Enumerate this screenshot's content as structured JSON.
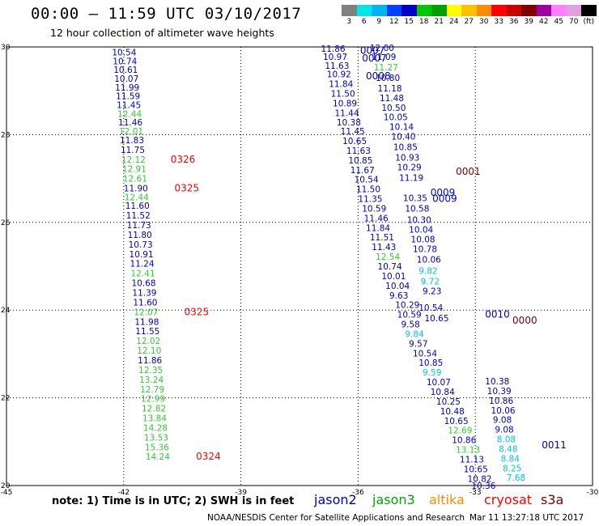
{
  "header": {
    "title": "00:00 – 11:59 UTC 03/10/2017",
    "subtitle": "12 hour collection of altimeter wave heights"
  },
  "colorbar": {
    "colors": [
      "#808080",
      "#00e5e5",
      "#00b4f0",
      "#0040ff",
      "#0000c8",
      "#00c800",
      "#00a000",
      "#ffff00",
      "#ffc000",
      "#ff8c00",
      "#ff0000",
      "#c80000",
      "#800000",
      "#a000a0",
      "#ff80ff",
      "#e0a0e0",
      "#000000"
    ],
    "labels": [
      "3",
      "6",
      "9",
      "12",
      "15",
      "18",
      "21",
      "24",
      "27",
      "30",
      "33",
      "36",
      "39",
      "42",
      "45",
      "70",
      "(ft)"
    ]
  },
  "axes": {
    "x_ticks": [
      "-45",
      "-42",
      "-39",
      "-36",
      "-33",
      "-30"
    ],
    "y_ticks": [
      "30",
      "28",
      "26",
      "24",
      "22",
      "20"
    ]
  },
  "map_extent": {
    "lon_min": -45,
    "lon_max": -30,
    "lat_min": 20,
    "lat_max": 30
  },
  "series_colors": {
    "blue": "#0000cc",
    "green": "#33cc33",
    "cyan": "#00c8e0",
    "red": "#ff0000",
    "maroon": "#800000"
  },
  "track_left": {
    "points": [
      {
        "lat": 29.88,
        "lon": -42.3,
        "v": "10.54",
        "c": "blue"
      },
      {
        "lat": 29.68,
        "lon": -42.28,
        "v": "10.74",
        "c": "blue"
      },
      {
        "lat": 29.48,
        "lon": -42.26,
        "v": "10.61",
        "c": "blue"
      },
      {
        "lat": 29.28,
        "lon": -42.24,
        "v": "10.07",
        "c": "blue"
      },
      {
        "lat": 29.08,
        "lon": -42.22,
        "v": "11.99",
        "c": "blue"
      },
      {
        "lat": 28.88,
        "lon": -42.2,
        "v": "11.59",
        "c": "blue"
      },
      {
        "lat": 28.68,
        "lon": -42.18,
        "v": "11.45",
        "c": "blue"
      },
      {
        "lat": 28.48,
        "lon": -42.16,
        "v": "12.44",
        "c": "green"
      },
      {
        "lat": 28.28,
        "lon": -42.14,
        "v": "11.46",
        "c": "blue"
      },
      {
        "lat": 28.08,
        "lon": -42.12,
        "v": "12.01",
        "c": "green"
      },
      {
        "lat": 27.88,
        "lon": -42.1,
        "v": "11.83",
        "c": "blue"
      },
      {
        "lat": 27.66,
        "lon": -42.08,
        "v": "11.75",
        "c": "blue"
      },
      {
        "lat": 27.44,
        "lon": -42.06,
        "v": "12.12",
        "c": "green"
      },
      {
        "lat": 27.22,
        "lon": -42.04,
        "v": "12.91",
        "c": "green"
      },
      {
        "lat": 27.0,
        "lon": -42.02,
        "v": "12.61",
        "c": "green"
      },
      {
        "lat": 26.78,
        "lon": -42.0,
        "v": "11.90",
        "c": "blue"
      },
      {
        "lat": 26.58,
        "lon": -41.98,
        "v": "12.44",
        "c": "green"
      },
      {
        "lat": 26.38,
        "lon": -41.96,
        "v": "11.60",
        "c": "blue"
      },
      {
        "lat": 26.16,
        "lon": -41.94,
        "v": "11.52",
        "c": "blue"
      },
      {
        "lat": 25.94,
        "lon": -41.92,
        "v": "11.73",
        "c": "blue"
      },
      {
        "lat": 25.72,
        "lon": -41.9,
        "v": "11.80",
        "c": "blue"
      },
      {
        "lat": 25.5,
        "lon": -41.88,
        "v": "10.73",
        "c": "blue"
      },
      {
        "lat": 25.28,
        "lon": -41.86,
        "v": "10.91",
        "c": "blue"
      },
      {
        "lat": 25.06,
        "lon": -41.84,
        "v": "11.24",
        "c": "blue"
      },
      {
        "lat": 24.84,
        "lon": -41.82,
        "v": "12.41",
        "c": "green"
      },
      {
        "lat": 24.62,
        "lon": -41.8,
        "v": "10.68",
        "c": "blue"
      },
      {
        "lat": 24.4,
        "lon": -41.78,
        "v": "11.39",
        "c": "blue"
      },
      {
        "lat": 24.18,
        "lon": -41.76,
        "v": "11.60",
        "c": "blue"
      },
      {
        "lat": 23.96,
        "lon": -41.74,
        "v": "12.07",
        "c": "green"
      },
      {
        "lat": 23.74,
        "lon": -41.72,
        "v": "11.98",
        "c": "blue"
      },
      {
        "lat": 23.52,
        "lon": -41.7,
        "v": "11.55",
        "c": "blue"
      },
      {
        "lat": 23.3,
        "lon": -41.68,
        "v": "12.02",
        "c": "green"
      },
      {
        "lat": 23.08,
        "lon": -41.66,
        "v": "12.10",
        "c": "green"
      },
      {
        "lat": 22.86,
        "lon": -41.64,
        "v": "11.86",
        "c": "blue"
      },
      {
        "lat": 22.64,
        "lon": -41.62,
        "v": "12.35",
        "c": "green"
      },
      {
        "lat": 22.42,
        "lon": -41.6,
        "v": "13.24",
        "c": "green"
      },
      {
        "lat": 22.2,
        "lon": -41.58,
        "v": "12.79",
        "c": "green"
      },
      {
        "lat": 21.98,
        "lon": -41.56,
        "v": "12.99",
        "c": "green"
      },
      {
        "lat": 21.76,
        "lon": -41.54,
        "v": "12.82",
        "c": "green"
      },
      {
        "lat": 21.54,
        "lon": -41.52,
        "v": "13.84",
        "c": "green"
      },
      {
        "lat": 21.32,
        "lon": -41.5,
        "v": "14.28",
        "c": "green"
      },
      {
        "lat": 21.1,
        "lon": -41.48,
        "v": "13.53",
        "c": "green"
      },
      {
        "lat": 20.88,
        "lon": -41.46,
        "v": "15.36",
        "c": "green"
      },
      {
        "lat": 20.66,
        "lon": -41.44,
        "v": "14.24",
        "c": "green"
      }
    ],
    "times": [
      {
        "lat": 27.44,
        "lon": -40.8,
        "t": "0326"
      },
      {
        "lat": 26.78,
        "lon": -40.7,
        "t": "0325"
      },
      {
        "lat": 23.96,
        "lon": -40.45,
        "t": "0325"
      },
      {
        "lat": 20.66,
        "lon": -40.15,
        "t": "0324"
      }
    ]
  },
  "track_right_a": [
    {
      "lat": 29.98,
      "lon": -35.7,
      "v": "12.00",
      "c": "blue"
    },
    {
      "lat": 29.78,
      "lon": -35.65,
      "v": "11.09",
      "c": "blue"
    },
    {
      "lat": 29.54,
      "lon": -35.6,
      "v": "11.27",
      "c": "green"
    },
    {
      "lat": 29.3,
      "lon": -35.55,
      "v": "10.80",
      "c": "blue"
    },
    {
      "lat": 29.06,
      "lon": -35.5,
      "v": "11.18",
      "c": "blue"
    },
    {
      "lat": 28.84,
      "lon": -35.45,
      "v": "11.48",
      "c": "blue"
    },
    {
      "lat": 28.62,
      "lon": -35.4,
      "v": "10.50",
      "c": "blue"
    },
    {
      "lat": 28.4,
      "lon": -35.35,
      "v": "10.05",
      "c": "blue"
    },
    {
      "lat": 28.18,
      "lon": -35.2,
      "v": "10.14",
      "c": "blue"
    },
    {
      "lat": 27.96,
      "lon": -35.15,
      "v": "10.40",
      "c": "blue"
    },
    {
      "lat": 27.72,
      "lon": -35.1,
      "v": "10.85",
      "c": "blue"
    },
    {
      "lat": 27.48,
      "lon": -35.05,
      "v": "10.93",
      "c": "blue"
    },
    {
      "lat": 27.26,
      "lon": -35.0,
      "v": "10.29",
      "c": "blue"
    },
    {
      "lat": 27.02,
      "lon": -34.95,
      "v": "11.19",
      "c": "blue"
    },
    {
      "lat": 26.56,
      "lon": -34.85,
      "v": "10.35",
      "c": "blue"
    },
    {
      "lat": 26.32,
      "lon": -34.8,
      "v": "10.58",
      "c": "blue"
    },
    {
      "lat": 26.06,
      "lon": -34.75,
      "v": "10.30",
      "c": "blue"
    },
    {
      "lat": 25.84,
      "lon": -34.7,
      "v": "10.04",
      "c": "blue"
    },
    {
      "lat": 25.62,
      "lon": -34.65,
      "v": "10.08",
      "c": "blue"
    },
    {
      "lat": 25.4,
      "lon": -34.6,
      "v": "10.78",
      "c": "blue"
    },
    {
      "lat": 25.16,
      "lon": -34.5,
      "v": "10.06",
      "c": "blue"
    },
    {
      "lat": 24.9,
      "lon": -34.45,
      "v": "9.82",
      "c": "cyan"
    },
    {
      "lat": 24.66,
      "lon": -34.4,
      "v": "9.72",
      "c": "cyan"
    },
    {
      "lat": 24.44,
      "lon": -34.35,
      "v": "9.23",
      "c": "blue"
    },
    {
      "lat": 24.06,
      "lon": -34.45,
      "v": "10.54",
      "c": "blue"
    },
    {
      "lat": 23.82,
      "lon": -34.3,
      "v": "10.65",
      "c": "blue"
    }
  ],
  "track_right_labels": [
    {
      "lat": 29.96,
      "lon": -36.95,
      "v": "11.86",
      "c": "blue"
    },
    {
      "lat": 29.78,
      "lon": -36.9,
      "v": "10.97",
      "c": "blue"
    },
    {
      "lat": 29.58,
      "lon": -36.85,
      "v": "11.63",
      "c": "blue"
    },
    {
      "lat": 29.38,
      "lon": -36.8,
      "v": "10.92",
      "c": "blue"
    },
    {
      "lat": 29.16,
      "lon": -36.75,
      "v": "11.84",
      "c": "blue"
    },
    {
      "lat": 28.94,
      "lon": -36.7,
      "v": "11.50",
      "c": "blue"
    },
    {
      "lat": 28.72,
      "lon": -36.65,
      "v": "10.89",
      "c": "blue"
    },
    {
      "lat": 28.5,
      "lon": -36.6,
      "v": "11.44",
      "c": "blue"
    },
    {
      "lat": 28.28,
      "lon": -36.55,
      "v": "10.38",
      "c": "blue"
    },
    {
      "lat": 28.08,
      "lon": -36.45,
      "v": "11.45",
      "c": "blue"
    },
    {
      "lat": 27.86,
      "lon": -36.4,
      "v": "10.65",
      "c": "blue"
    },
    {
      "lat": 27.64,
      "lon": -36.3,
      "v": "11.63",
      "c": "blue"
    },
    {
      "lat": 27.42,
      "lon": -36.25,
      "v": "10.85",
      "c": "blue"
    },
    {
      "lat": 27.2,
      "lon": -36.2,
      "v": "11.67",
      "c": "blue"
    },
    {
      "lat": 26.98,
      "lon": -36.1,
      "v": "10.54",
      "c": "blue"
    },
    {
      "lat": 26.76,
      "lon": -36.05,
      "v": "11.50",
      "c": "blue"
    },
    {
      "lat": 26.54,
      "lon": -36.0,
      "v": "11.35",
      "c": "blue"
    },
    {
      "lat": 26.32,
      "lon": -35.9,
      "v": "10.59",
      "c": "blue"
    },
    {
      "lat": 26.1,
      "lon": -35.85,
      "v": "11.46",
      "c": "blue"
    },
    {
      "lat": 25.88,
      "lon": -35.8,
      "v": "11.84",
      "c": "blue"
    },
    {
      "lat": 25.66,
      "lon": -35.7,
      "v": "11.51",
      "c": "blue"
    },
    {
      "lat": 25.44,
      "lon": -35.65,
      "v": "11.43",
      "c": "blue"
    },
    {
      "lat": 25.22,
      "lon": -35.55,
      "v": "12.54",
      "c": "green"
    },
    {
      "lat": 25.0,
      "lon": -35.5,
      "v": "10.74",
      "c": "blue"
    },
    {
      "lat": 24.78,
      "lon": -35.4,
      "v": "10.01",
      "c": "blue"
    },
    {
      "lat": 24.56,
      "lon": -35.3,
      "v": "10.04",
      "c": "blue"
    },
    {
      "lat": 24.34,
      "lon": -35.2,
      "v": "9.63",
      "c": "blue"
    },
    {
      "lat": 24.12,
      "lon": -35.05,
      "v": "10.29",
      "c": "blue"
    },
    {
      "lat": 23.9,
      "lon": -35.0,
      "v": "10.59",
      "c": "blue"
    },
    {
      "lat": 23.68,
      "lon": -34.9,
      "v": "9.58",
      "c": "blue"
    },
    {
      "lat": 23.46,
      "lon": -34.8,
      "v": "9.84",
      "c": "cyan"
    },
    {
      "lat": 23.24,
      "lon": -34.7,
      "v": "9.57",
      "c": "blue"
    },
    {
      "lat": 23.02,
      "lon": -34.6,
      "v": "10.54",
      "c": "blue"
    },
    {
      "lat": 22.8,
      "lon": -34.45,
      "v": "10.85",
      "c": "blue"
    },
    {
      "lat": 22.58,
      "lon": -34.35,
      "v": "9.59",
      "c": "cyan"
    },
    {
      "lat": 22.36,
      "lon": -34.25,
      "v": "10.07",
      "c": "blue"
    },
    {
      "lat": 22.14,
      "lon": -34.15,
      "v": "10.84",
      "c": "blue"
    },
    {
      "lat": 21.92,
      "lon": -34.0,
      "v": "10.25",
      "c": "blue"
    },
    {
      "lat": 21.7,
      "lon": -33.9,
      "v": "10.48",
      "c": "blue"
    },
    {
      "lat": 21.48,
      "lon": -33.8,
      "v": "10.65",
      "c": "blue"
    },
    {
      "lat": 21.26,
      "lon": -33.7,
      "v": "12.69",
      "c": "green"
    },
    {
      "lat": 21.04,
      "lon": -33.6,
      "v": "10.86",
      "c": "blue"
    },
    {
      "lat": 20.82,
      "lon": -33.5,
      "v": "13.13",
      "c": "green"
    },
    {
      "lat": 20.6,
      "lon": -33.4,
      "v": "11.13",
      "c": "blue"
    },
    {
      "lat": 20.38,
      "lon": -33.3,
      "v": "10.65",
      "c": "blue"
    },
    {
      "lat": 20.16,
      "lon": -33.2,
      "v": "10.82",
      "c": "blue"
    },
    {
      "lat": 20.0,
      "lon": -33.1,
      "v": "10.36",
      "c": "blue"
    }
  ],
  "track_bottom": [
    {
      "lat": 22.38,
      "lon": -32.75,
      "v": "10.38",
      "c": "blue"
    },
    {
      "lat": 22.16,
      "lon": -32.7,
      "v": "10.39",
      "c": "blue"
    },
    {
      "lat": 21.94,
      "lon": -32.65,
      "v": "10.86",
      "c": "blue"
    },
    {
      "lat": 21.72,
      "lon": -32.6,
      "v": "10.06",
      "c": "blue"
    },
    {
      "lat": 21.5,
      "lon": -32.55,
      "v": "9.08",
      "c": "blue"
    },
    {
      "lat": 21.28,
      "lon": -32.5,
      "v": "9.08",
      "c": "blue"
    },
    {
      "lat": 21.06,
      "lon": -32.45,
      "v": "8.08",
      "c": "cyan"
    },
    {
      "lat": 20.84,
      "lon": -32.4,
      "v": "8.48",
      "c": "cyan"
    },
    {
      "lat": 20.62,
      "lon": -32.35,
      "v": "8.84",
      "c": "cyan"
    },
    {
      "lat": 20.4,
      "lon": -32.3,
      "v": "8.25",
      "c": "cyan"
    },
    {
      "lat": 20.18,
      "lon": -32.2,
      "v": "7.68",
      "c": "cyan"
    }
  ],
  "time_labels_right": [
    {
      "lat": 29.92,
      "lon": -35.95,
      "t": "0007",
      "c": "blue"
    },
    {
      "lat": 29.74,
      "lon": -35.9,
      "t": "0007",
      "c": "blue"
    },
    {
      "lat": 29.34,
      "lon": -35.8,
      "t": "0008",
      "c": "blue"
    },
    {
      "lat": 27.16,
      "lon": -33.5,
      "t": "0001",
      "c": "maroon"
    },
    {
      "lat": 26.68,
      "lon": -34.15,
      "t": "0009",
      "c": "blue"
    },
    {
      "lat": 26.54,
      "lon": -34.1,
      "t": "0009",
      "c": "blue"
    },
    {
      "lat": 23.9,
      "lon": -32.75,
      "t": "0010",
      "c": "blue"
    },
    {
      "lat": 23.76,
      "lon": -32.05,
      "t": "0000",
      "c": "maroon"
    },
    {
      "lat": 20.92,
      "lon": -31.3,
      "t": "0011",
      "c": "blue"
    }
  ],
  "footer": {
    "note": "note: 1) Time is in UTC; 2) SWH is in feet",
    "legend": [
      {
        "label": "jason2",
        "color": "#0000cc"
      },
      {
        "label": "jason3",
        "color": "#00aa00"
      },
      {
        "label": "altika",
        "color": "#ff8c00"
      },
      {
        "label": "cryosat",
        "color": "#ff0000"
      },
      {
        "label": "s3a",
        "color": "#800000"
      }
    ],
    "credit": "NOAA/NESDIS Center for Satellite Applications and Research",
    "timestamp": "Mar 11 13:27:18 UTC 2017"
  }
}
